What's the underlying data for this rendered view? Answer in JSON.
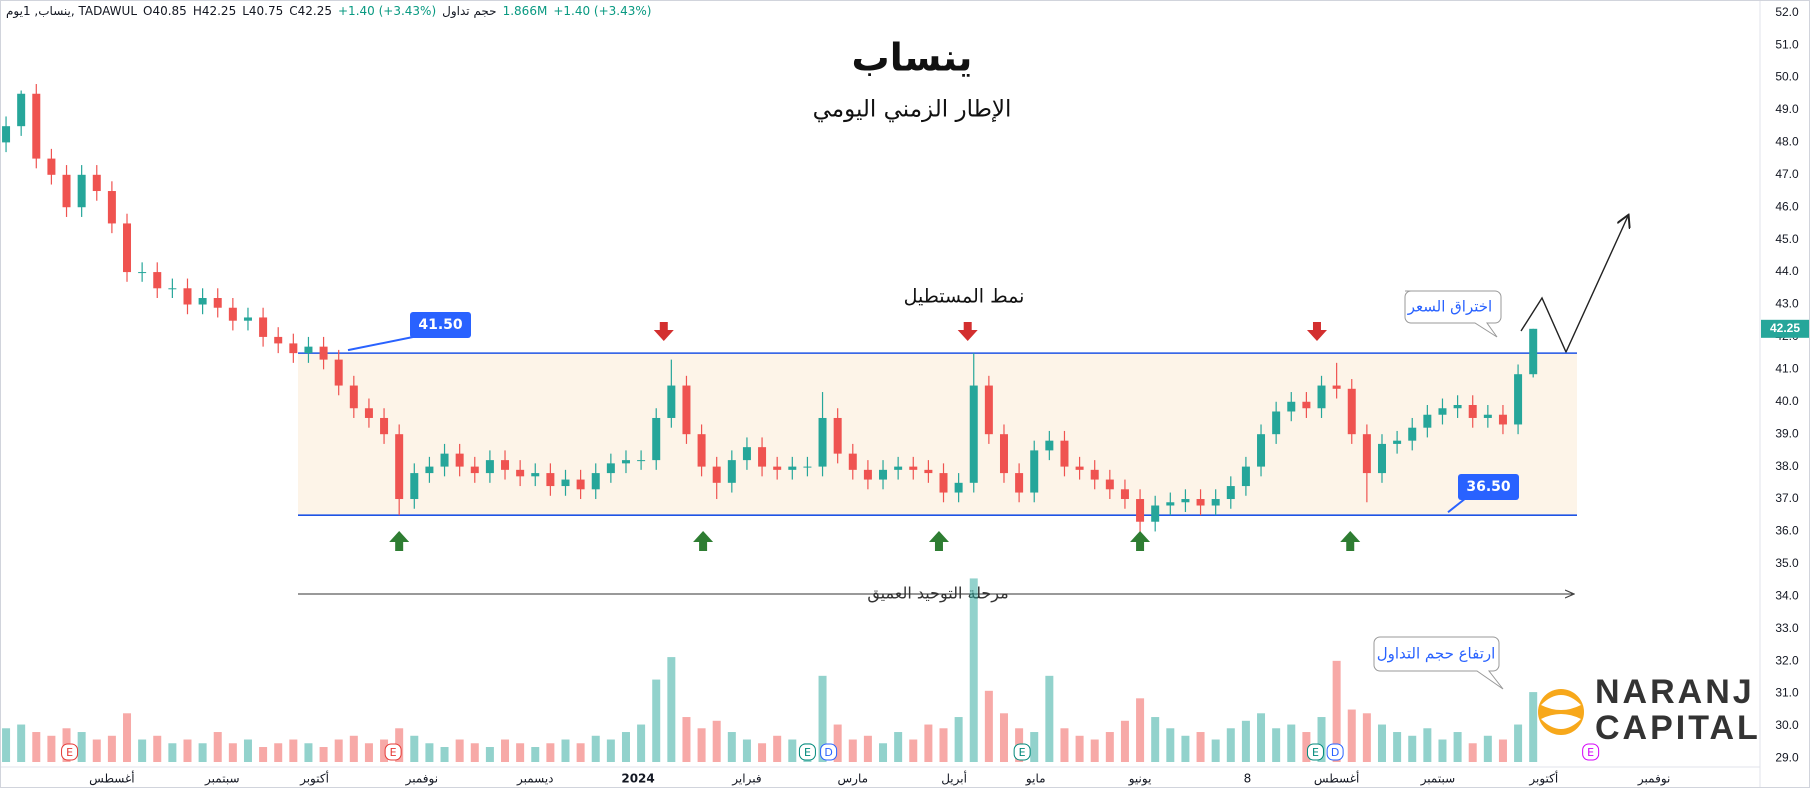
{
  "chart_data": {
    "type": "candlestick",
    "header": [
      "ينساب, 1يوم, TADAWUL",
      "O40.85",
      "H42.25",
      "L40.75",
      "C42.25",
      "+1.40 (+3.43%)",
      "حجم تداول",
      "1.866M",
      "+1.40 (+3.43%)"
    ],
    "title": "ينساب",
    "subtitle": "الإطار الزمني اليومي",
    "pattern_label": "نمط المستطيل",
    "phase_label": "مرحلة التوحيد العميق",
    "breakout_label": "اختراق السعر",
    "volume_label": "ارتفاع حجم التداول",
    "logo": [
      "NARANJ",
      "CAPITAL"
    ],
    "up_color": "#26a69a",
    "down_color": "#ef5350",
    "open": [
      48.0,
      48.5,
      49.5,
      47.5,
      47,
      46,
      47,
      46.5,
      45.5,
      44,
      44,
      43.5,
      43.5,
      43,
      43.2,
      42.9,
      42.5,
      42.6,
      42,
      41.8,
      41.5,
      41.7,
      41.3,
      40.5,
      39.8,
      39.5,
      39,
      37,
      37.8,
      38,
      38.4,
      38,
      37.8,
      38.2,
      37.9,
      37.7,
      37.8,
      37.4,
      37.6,
      37.3,
      37.8,
      38.1,
      38.2,
      38.2,
      39.5,
      40.5,
      39,
      38,
      37.5,
      38.2,
      38.6,
      38,
      37.9,
      38,
      38,
      39.5,
      38.4,
      37.9,
      37.6,
      37.9,
      38,
      37.9,
      37.8,
      37.2,
      37.5,
      40.5,
      39,
      37.8,
      37.2,
      38.5,
      38.8,
      38,
      37.9,
      37.6,
      37.3,
      37,
      36.3,
      36.8,
      36.9,
      37,
      36.8,
      37,
      37.4,
      38,
      39,
      39.7,
      40,
      39.8,
      40.5,
      40.4,
      39,
      37.8,
      38.7,
      38.8,
      39.2,
      39.6,
      39.8,
      39.9,
      39.5,
      39.6,
      39.3,
      40.85
    ],
    "high": [
      48.8,
      49.6,
      49.8,
      47.8,
      47.3,
      47.3,
      47.3,
      46.8,
      45.8,
      44.3,
      44.3,
      43.8,
      43.8,
      43.5,
      43.5,
      43.2,
      42.9,
      42.9,
      42.3,
      42.1,
      42.0,
      42.0,
      41.6,
      40.8,
      40.1,
      39.8,
      39.3,
      38.1,
      38.3,
      38.7,
      38.7,
      38.3,
      38.5,
      38.5,
      38.2,
      38.1,
      38.1,
      37.9,
      37.9,
      38.1,
      38.4,
      38.5,
      38.5,
      39.8,
      41.3,
      40.8,
      39.3,
      38.3,
      38.5,
      38.9,
      38.9,
      38.3,
      38.3,
      38.3,
      40.3,
      39.8,
      38.7,
      38.2,
      38.2,
      38.3,
      38.3,
      38.2,
      38.1,
      37.8,
      41.5,
      40.8,
      39.3,
      38.1,
      38.8,
      39.1,
      39.1,
      38.3,
      38.2,
      37.9,
      37.6,
      37.3,
      37.1,
      37.2,
      37.3,
      37.3,
      37.3,
      37.7,
      38.3,
      39.3,
      40.0,
      40.3,
      40.3,
      40.8,
      41.2,
      40.7,
      39.3,
      39.0,
      39.1,
      39.5,
      39.9,
      40.1,
      40.2,
      40.2,
      39.9,
      39.9,
      41.15,
      42.25
    ],
    "low": [
      47.7,
      48.2,
      47.2,
      46.7,
      45.7,
      45.7,
      46.2,
      45.2,
      43.7,
      43.7,
      43.2,
      43.2,
      42.7,
      42.7,
      42.6,
      42.2,
      42.2,
      41.7,
      41.5,
      41.2,
      41.2,
      41.0,
      40.2,
      39.5,
      39.2,
      38.7,
      36.5,
      36.7,
      37.5,
      37.7,
      37.7,
      37.5,
      37.5,
      37.6,
      37.4,
      37.4,
      37.1,
      37.1,
      37.0,
      37.0,
      37.5,
      37.8,
      37.9,
      37.9,
      39.2,
      38.7,
      37.7,
      37.0,
      37.2,
      37.9,
      37.7,
      37.6,
      37.6,
      37.7,
      37.7,
      38.1,
      37.6,
      37.3,
      37.3,
      37.6,
      37.6,
      37.5,
      36.9,
      36.9,
      37.2,
      38.7,
      37.5,
      36.9,
      36.9,
      38.2,
      37.7,
      37.6,
      37.3,
      37.0,
      36.7,
      35.9,
      36.0,
      36.5,
      36.6,
      36.5,
      36.5,
      36.7,
      37.1,
      37.7,
      38.7,
      39.4,
      39.5,
      39.5,
      40.1,
      38.7,
      36.9,
      37.5,
      38.4,
      38.5,
      38.9,
      39.3,
      39.5,
      39.2,
      39.2,
      39.0,
      39.0,
      40.75
    ],
    "close": [
      48.5,
      49.5,
      47.5,
      47,
      46,
      47,
      46.5,
      45.5,
      44,
      44,
      43.5,
      43.5,
      43,
      43.2,
      42.9,
      42.5,
      42.6,
      42,
      41.8,
      41.5,
      41.7,
      41.3,
      40.5,
      39.8,
      39.5,
      39,
      37,
      37.8,
      38,
      38.4,
      38,
      37.8,
      38.2,
      37.9,
      37.7,
      37.8,
      37.4,
      37.6,
      37.3,
      37.8,
      38.1,
      38.2,
      38.2,
      39.5,
      40.5,
      39,
      38,
      37.5,
      38.2,
      38.6,
      38,
      37.9,
      38,
      38,
      39.5,
      38.4,
      37.9,
      37.6,
      37.9,
      38,
      37.9,
      37.8,
      37.2,
      37.5,
      40.5,
      39,
      37.8,
      37.2,
      38.5,
      38.8,
      38,
      37.9,
      37.6,
      37.3,
      37,
      36.3,
      36.8,
      36.9,
      37,
      36.8,
      37,
      37.4,
      38,
      39,
      39.7,
      40,
      39.8,
      40.5,
      40.4,
      39,
      37.8,
      38.7,
      38.8,
      39.2,
      39.6,
      39.8,
      39.9,
      39.5,
      39.6,
      39.3,
      40.85,
      42.25
    ],
    "volume": [
      0.9,
      1.0,
      0.8,
      0.7,
      0.9,
      0.8,
      0.6,
      0.7,
      1.3,
      0.6,
      0.7,
      0.5,
      0.6,
      0.5,
      0.8,
      0.5,
      0.6,
      0.4,
      0.5,
      0.6,
      0.5,
      0.4,
      0.6,
      0.7,
      0.5,
      0.6,
      0.9,
      0.7,
      0.5,
      0.4,
      0.6,
      0.5,
      0.4,
      0.6,
      0.5,
      0.4,
      0.5,
      0.6,
      0.5,
      0.7,
      0.6,
      0.8,
      1.0,
      2.2,
      2.8,
      1.2,
      0.9,
      1.1,
      0.8,
      0.6,
      0.5,
      0.7,
      0.6,
      0.5,
      2.3,
      1.0,
      0.6,
      0.7,
      0.5,
      0.8,
      0.6,
      1.0,
      0.9,
      1.2,
      4.9,
      1.9,
      1.3,
      0.9,
      0.8,
      2.3,
      0.9,
      0.7,
      0.6,
      0.8,
      1.1,
      1.7,
      1.2,
      0.9,
      0.7,
      0.8,
      0.6,
      0.9,
      1.1,
      1.3,
      0.9,
      1.0,
      0.8,
      1.2,
      2.7,
      1.4,
      1.3,
      1.0,
      0.8,
      0.7,
      0.9,
      0.6,
      0.8,
      0.5,
      0.7,
      0.6,
      1.0,
      1.866
    ],
    "xlim": [
      -0.4,
      116
    ],
    "xticks": [
      {
        "value": 7.0,
        "label": "أغسطس"
      },
      {
        "value": 14.3,
        "label": "سبتمبر"
      },
      {
        "value": 20.4,
        "label": "أكتوبر"
      },
      {
        "value": 27.5,
        "label": "نوفمبر"
      },
      {
        "value": 35.0,
        "label": "ديسمبر"
      },
      {
        "value": 41.8,
        "label": "2024"
      },
      {
        "value": 49.0,
        "label": "فبراير"
      },
      {
        "value": 56.0,
        "label": "مارس"
      },
      {
        "value": 62.7,
        "label": "أبريل"
      },
      {
        "value": 68.1,
        "label": "مايو"
      },
      {
        "value": 75.0,
        "label": "يونيو"
      },
      {
        "value": 82.1,
        "label": "8"
      },
      {
        "value": 88.0,
        "label": "أغسطس"
      },
      {
        "value": 94.7,
        "label": "سبتمبر"
      },
      {
        "value": 101.7,
        "label": "أكتوبر"
      },
      {
        "value": 109.0,
        "label": "نوفمبر"
      }
    ],
    "ylim": [
      29,
      52
    ],
    "yticks": [
      {
        "value": 29,
        "label": "29.0"
      },
      {
        "value": 30,
        "label": "30.0"
      },
      {
        "value": 31,
        "label": "31.0"
      },
      {
        "value": 32,
        "label": "32.0"
      },
      {
        "value": 33,
        "label": "33.0"
      },
      {
        "value": 34,
        "label": "34.0"
      },
      {
        "value": 35,
        "label": "35.0"
      },
      {
        "value": 36,
        "label": "36.0"
      },
      {
        "value": 37,
        "label": "37.0"
      },
      {
        "value": 38,
        "label": "38.0"
      },
      {
        "value": 39,
        "label": "39.0"
      },
      {
        "value": 40,
        "label": "40.0"
      },
      {
        "value": 41,
        "label": "41.0"
      },
      {
        "value": 42,
        "label": "42.0"
      },
      {
        "value": 43,
        "label": "43.0"
      },
      {
        "value": 44,
        "label": "44.0"
      },
      {
        "value": 45,
        "label": "45.0"
      },
      {
        "value": 46,
        "label": "46.0"
      },
      {
        "value": 47,
        "label": "47.0"
      },
      {
        "value": 48,
        "label": "48.0"
      },
      {
        "value": 49,
        "label": "49.0"
      },
      {
        "value": 50,
        "label": "50.0"
      },
      {
        "value": 51,
        "label": "51.0"
      },
      {
        "value": 52,
        "label": "52.0"
      }
    ],
    "y2lim": [
      0,
      20
    ],
    "levels": [
      {
        "value": 41.5,
        "label": "41.50"
      },
      {
        "value": 36.5,
        "label": "36.50"
      }
    ],
    "price_badge": 42.25,
    "events": [
      {
        "x": 4.2,
        "label": "E",
        "color": "#e53935"
      },
      {
        "x": 25.6,
        "label": "E",
        "color": "#e53935"
      },
      {
        "x": 53.0,
        "label": "E",
        "color": "#00897b"
      },
      {
        "x": 54.4,
        "label": "D",
        "color": "#2962ff"
      },
      {
        "x": 67.2,
        "label": "E",
        "color": "#00897b"
      },
      {
        "x": 86.6,
        "label": "E",
        "color": "#00897b"
      },
      {
        "x": 87.9,
        "label": "D",
        "color": "#2962ff"
      },
      {
        "x": 104.8,
        "label": "E",
        "color": "#d500f9"
      }
    ]
  }
}
